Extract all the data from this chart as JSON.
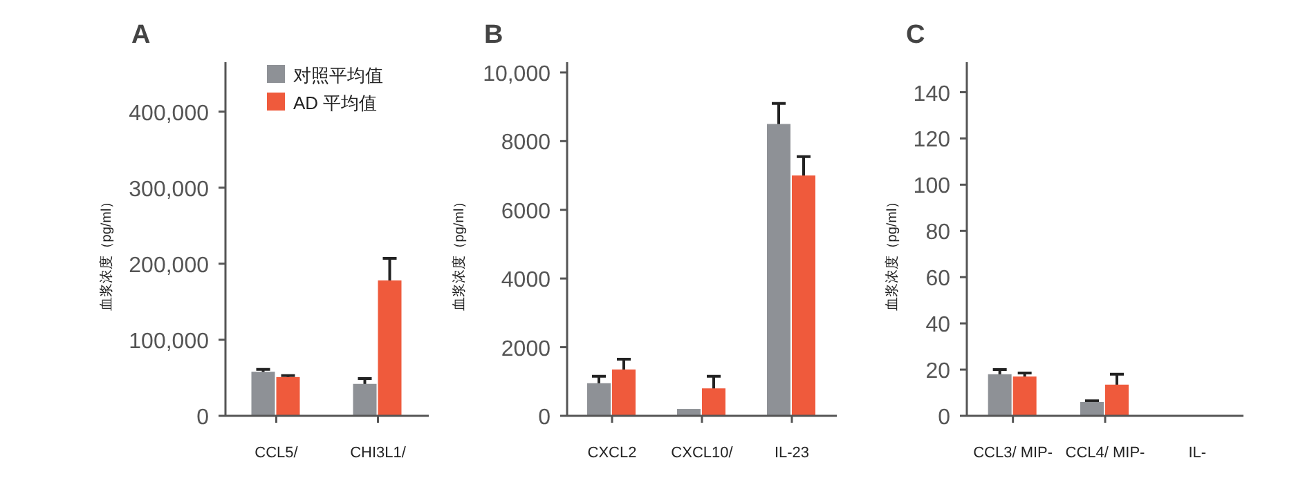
{
  "chart_data": [
    {
      "type": "bar",
      "title": "A",
      "ylabel": "血浆浓度（pg/ml）",
      "categories": [
        "CCL5/",
        "CHI3L1/"
      ],
      "legend": "top",
      "series": [
        {
          "name": "对照平均值",
          "color": "#8e9196",
          "values": [
            58000,
            42000
          ],
          "errors": [
            3000,
            7000
          ]
        },
        {
          "name": "AD 平均值",
          "color": "#ef5a3c",
          "values": [
            51000,
            178000
          ],
          "errors": [
            2000,
            29000
          ]
        }
      ],
      "ylim": [
        0,
        465000
      ],
      "yticks": [
        0,
        {
          "value": 100000,
          "label": "100,000"
        },
        {
          "value": 200000,
          "label": "200,000"
        },
        {
          "value": 300000,
          "label": "300,000"
        },
        {
          "value": 400000,
          "label": "400,000"
        }
      ]
    },
    {
      "type": "bar",
      "title": "B",
      "ylabel": "血浆浓度（pg/ml）",
      "categories": [
        "CXCL2",
        "CXCL10/",
        "IL-23"
      ],
      "series": [
        {
          "color": "#8e9196",
          "values": [
            950,
            200,
            8500
          ],
          "errors": [
            200,
            null,
            600
          ]
        },
        {
          "color": "#ef5a3c",
          "values": [
            1350,
            800,
            7000
          ],
          "errors": [
            300,
            350,
            550
          ]
        }
      ],
      "ylim": [
        0,
        10300
      ],
      "yticks": [
        0,
        2000,
        4000,
        6000,
        8000,
        {
          "value": 10000,
          "label": "10,000"
        }
      ]
    },
    {
      "type": "bar",
      "title": "C",
      "ylabel": "血浆浓度（pg/ml）",
      "categories": [
        "CCL3/ MIP-",
        "CCL4/ MIP-",
        "IL-"
      ],
      "series": [
        {
          "color": "#8e9196",
          "values": [
            18,
            6,
            null
          ],
          "errors": [
            2,
            0.5,
            null
          ]
        },
        {
          "color": "#ef5a3c",
          "values": [
            17,
            13.5,
            null
          ],
          "errors": [
            1.5,
            4.5,
            null
          ]
        }
      ],
      "ylim": [
        0,
        153
      ],
      "yticks": [
        0,
        20,
        40,
        60,
        80,
        100,
        120,
        140
      ]
    }
  ]
}
